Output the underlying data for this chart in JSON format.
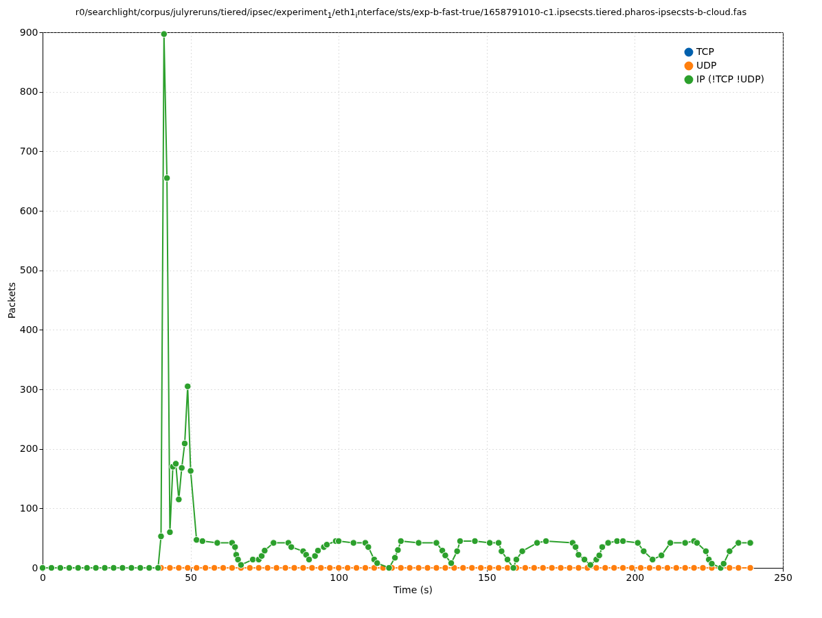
{
  "chart_data": {
    "type": "line",
    "title": "r0/searchlight/corpus/julyreruns/tiered/ipsec/experiment$_{1}$/eth1$_{i}$nterface/sts/exp-b-fast-true/1658791010-c1.ipsecsts.tiered.pharos-ipsecsts-b-cloud.fas",
    "xlabel": "Time (s)",
    "ylabel": "Packets",
    "xlim": [
      0,
      250
    ],
    "xticks": [
      0,
      50,
      100,
      150,
      200,
      250
    ],
    "ylim": [
      0,
      900
    ],
    "yticks": [
      0,
      100,
      200,
      300,
      400,
      500,
      600,
      700,
      800,
      900
    ],
    "grid": true,
    "legend": "top right",
    "marker": "circle",
    "line_style": "solid",
    "series": [
      {
        "name": "TCP",
        "color": "#0060ad"
      },
      {
        "name": "UDP",
        "color": "#ff7f0e",
        "x": [
          40,
          43,
          46,
          49,
          52,
          55,
          58,
          61,
          64,
          67,
          70,
          73,
          76,
          79,
          82,
          85,
          88,
          91,
          94,
          97,
          100,
          103,
          106,
          109,
          112,
          115,
          118,
          121,
          124,
          127,
          130,
          133,
          136,
          139,
          142,
          145,
          148,
          151,
          154,
          157,
          160,
          163,
          166,
          169,
          172,
          175,
          178,
          181,
          184,
          187,
          190,
          193,
          196,
          199,
          202,
          205,
          208,
          211,
          214,
          217,
          220,
          223,
          226,
          229,
          232,
          235,
          239
        ],
        "values": [
          0,
          0,
          0,
          0,
          0,
          0,
          0,
          0,
          0,
          0,
          0,
          0,
          0,
          0,
          0,
          0,
          0,
          0,
          0,
          0,
          0,
          0,
          0,
          0,
          0,
          0,
          0,
          0,
          0,
          0,
          0,
          0,
          0,
          0,
          0,
          0,
          0,
          0,
          0,
          0,
          0,
          0,
          0,
          0,
          0,
          0,
          0,
          0,
          0,
          0,
          0,
          0,
          0,
          0,
          0,
          0,
          0,
          0,
          0,
          0,
          0,
          0,
          0,
          0,
          0,
          0,
          0
        ]
      },
      {
        "name": "IP (!TCP  !UDP)",
        "color": "#2ca02c",
        "x": [
          0,
          3,
          6,
          9,
          12,
          15,
          18,
          21,
          24,
          27,
          30,
          33,
          36,
          39,
          40,
          41,
          42,
          43,
          44,
          45,
          46,
          47,
          48,
          49,
          50,
          52,
          54,
          59,
          64,
          65,
          65.4,
          66,
          67,
          71,
          73,
          74,
          75,
          78,
          83,
          84,
          88,
          89,
          90,
          92,
          93,
          95,
          96,
          99,
          100,
          105,
          109,
          110,
          112,
          113,
          117,
          119,
          120,
          121,
          127,
          133,
          135,
          136,
          138,
          140,
          141,
          146,
          151,
          154,
          155,
          157,
          159,
          160,
          162,
          167,
          170,
          179,
          180,
          181,
          183,
          185,
          187,
          188,
          189,
          191,
          194,
          196,
          201,
          203,
          206,
          209,
          212,
          217,
          220,
          221,
          224,
          225,
          226,
          229,
          230,
          232,
          235,
          239
        ],
        "values": [
          0,
          0,
          0,
          0,
          0,
          0,
          0,
          0,
          0,
          0,
          0,
          0,
          0,
          0,
          53,
          897,
          655,
          60,
          170,
          175,
          115,
          168,
          209,
          305,
          163,
          47,
          45,
          42,
          42,
          35,
          22,
          14,
          5,
          14,
          14,
          20,
          29,
          42,
          42,
          35,
          28,
          22,
          14,
          20,
          29,
          35,
          39,
          45,
          45,
          42,
          42,
          35,
          14,
          8,
          0,
          17,
          30,
          45,
          42,
          42,
          29,
          21,
          8,
          28,
          45,
          45,
          42,
          42,
          28,
          14,
          0,
          14,
          28,
          42,
          45,
          42,
          35,
          22,
          14,
          5,
          14,
          21,
          35,
          42,
          45,
          45,
          42,
          28,
          14,
          21,
          42,
          42,
          45,
          42,
          28,
          14,
          7,
          0,
          7,
          28,
          42,
          42
        ]
      }
    ]
  }
}
